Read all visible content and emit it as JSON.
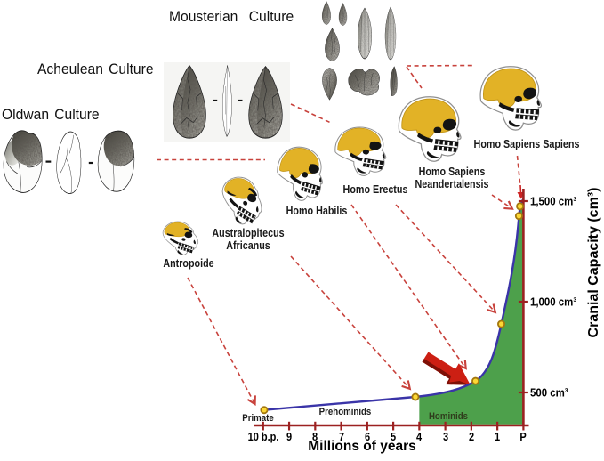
{
  "cultures": [
    {
      "id": "oldwan",
      "label": "Oldwan Culture"
    },
    {
      "id": "acheulean",
      "label": "Acheulean Culture"
    },
    {
      "id": "mousterian",
      "label": "Mousterian  Culture"
    }
  ],
  "skulls": [
    {
      "id": "antropoide",
      "label": "Antropoide"
    },
    {
      "id": "australopitecus",
      "label": "Australopitecus\nAfricanus"
    },
    {
      "id": "habilis",
      "label": "Homo Habilis"
    },
    {
      "id": "erectus",
      "label": "Homo Erectus"
    },
    {
      "id": "neandertal",
      "label": "Homo Sapiens\nNeandertalensis"
    },
    {
      "id": "sapiens",
      "label": "Homo Sapiens Sapiens"
    }
  ],
  "chart_data": {
    "type": "area",
    "x_axis": {
      "label": "Millions of years",
      "ticks": [
        {
          "label": "10 b.p.",
          "mya": 10
        },
        {
          "label": "9",
          "mya": 9
        },
        {
          "label": "8",
          "mya": 8
        },
        {
          "label": "7",
          "mya": 7
        },
        {
          "label": "6",
          "mya": 6
        },
        {
          "label": "5",
          "mya": 5
        },
        {
          "label": "4",
          "mya": 4
        },
        {
          "label": "3",
          "mya": 3
        },
        {
          "label": "2",
          "mya": 2
        },
        {
          "label": "1",
          "mya": 1
        },
        {
          "label": "P",
          "mya": 0
        }
      ]
    },
    "y_axis": {
      "label": "Cranial Capacity (cm³)",
      "ticks": [
        {
          "label": "500 cm³",
          "cc": 500
        },
        {
          "label": "1,000 cm³",
          "cc": 1000
        },
        {
          "label": "1,500 cm³",
          "cc": 1500
        }
      ]
    },
    "regions": [
      {
        "label": "Primate",
        "mya": 10.2
      },
      {
        "label": "Prehominids",
        "mya": 6.85
      },
      {
        "label": "Hominids",
        "mya": 2.87
      }
    ],
    "hominid_area_start_mya": 4,
    "points": [
      {
        "species": "Antropoide",
        "mya": 9.96,
        "cc": 410
      },
      {
        "species": "Australopitecus Africanus",
        "mya": 4.15,
        "cc": 480
      },
      {
        "species": "Homo Habilis",
        "mya": 1.84,
        "cc": 565
      },
      {
        "species": "Homo Erectus",
        "mya": 0.85,
        "cc": 870
      },
      {
        "species": "Homo Sapiens Neandertalensis",
        "mya": 0.17,
        "cc": 1448
      },
      {
        "species": "Homo Sapiens Sapiens",
        "mya": 0.13,
        "cc": 1500
      }
    ]
  },
  "colors": {
    "curve": "#3a34a8",
    "area_green": "#4da04b",
    "axis_red": "#9c2121",
    "dashed_red": "#c8423c",
    "arrow_red": "#cc1f13",
    "arrow_dark": "#7e1007",
    "dot_fill": "#fdd835",
    "dot_ring": "#a3770e",
    "brain_yellow": "#e2b226",
    "brain_edge": "#c09317"
  }
}
